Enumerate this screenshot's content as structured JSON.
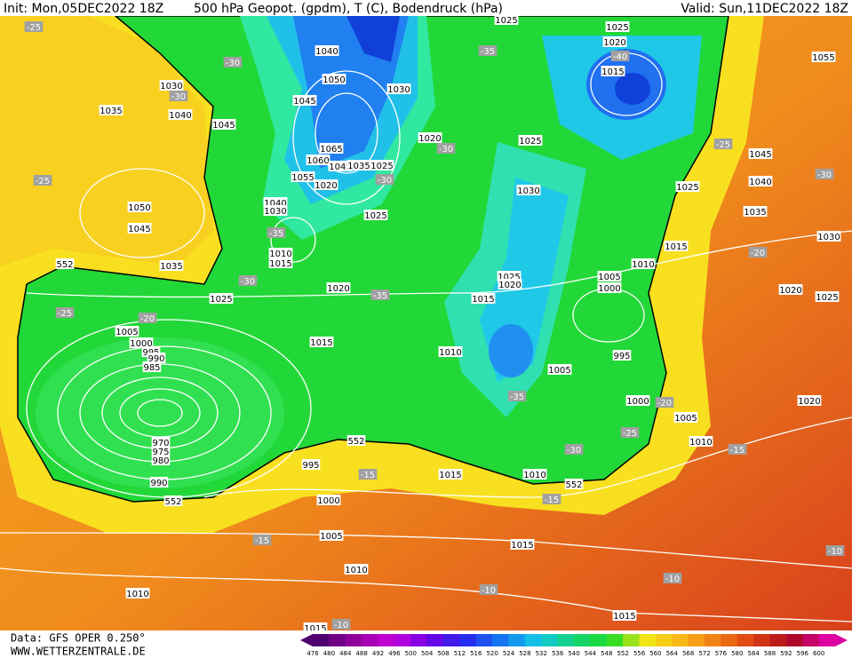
{
  "header": {
    "init": "Init: Mon,05DEC2022 18Z",
    "title": "500 hPa Geopot. (gpdm), T (C), Bodendruck (hPa)",
    "valid": "Valid: Sun,11DEC2022 18Z"
  },
  "footer": {
    "source": "Data: GFS OPER 0.250°",
    "website": "WWW.WETTERZENTRALE.DE"
  },
  "colorbar": {
    "ticks": [
      476,
      480,
      484,
      488,
      492,
      496,
      500,
      504,
      508,
      512,
      516,
      520,
      524,
      528,
      532,
      536,
      540,
      544,
      548,
      552,
      556,
      560,
      564,
      568,
      572,
      576,
      580,
      584,
      588,
      592,
      596,
      600
    ]
  },
  "map_labels": {
    "pressure": [
      "1025",
      "1025",
      "1020",
      "1015",
      "1040",
      "1050",
      "1030",
      "1030",
      "1035",
      "1040",
      "1045",
      "1045",
      "1020",
      "1025",
      "1065",
      "1060",
      "1045",
      "1035",
      "1025",
      "1055",
      "1020",
      "1030",
      "1025",
      "1045",
      "1040",
      "1035",
      "1030",
      "1055",
      "1050",
      "1045",
      "1040",
      "1030",
      "1025",
      "1010",
      "1015",
      "1035",
      "1015",
      "1010",
      "1005",
      "1000",
      "1020",
      "1025",
      "1025",
      "1020",
      "1015",
      "1020",
      "1025",
      "1005",
      "1000",
      "995",
      "990",
      "985",
      "1015",
      "1010",
      "995",
      "1005",
      "1000",
      "1020",
      "1005",
      "1010",
      "970",
      "975",
      "980",
      "990",
      "995",
      "1015",
      "1010",
      "1000",
      "1005",
      "1015",
      "1010",
      "1010",
      "1015",
      "1015"
    ],
    "temperature": [
      "-25",
      "-30",
      "-35",
      "-40",
      "-30",
      "-25",
      "-30",
      "-30",
      "-25",
      "-30",
      "-35",
      "-30",
      "-35",
      "-25",
      "-20",
      "-20",
      "-35",
      "-25",
      "-20",
      "-30",
      "-15",
      "-15",
      "-15",
      "-15",
      "-10",
      "-10",
      "-10",
      "-10"
    ],
    "geopotential": [
      "552",
      "552",
      "552",
      "552"
    ]
  }
}
